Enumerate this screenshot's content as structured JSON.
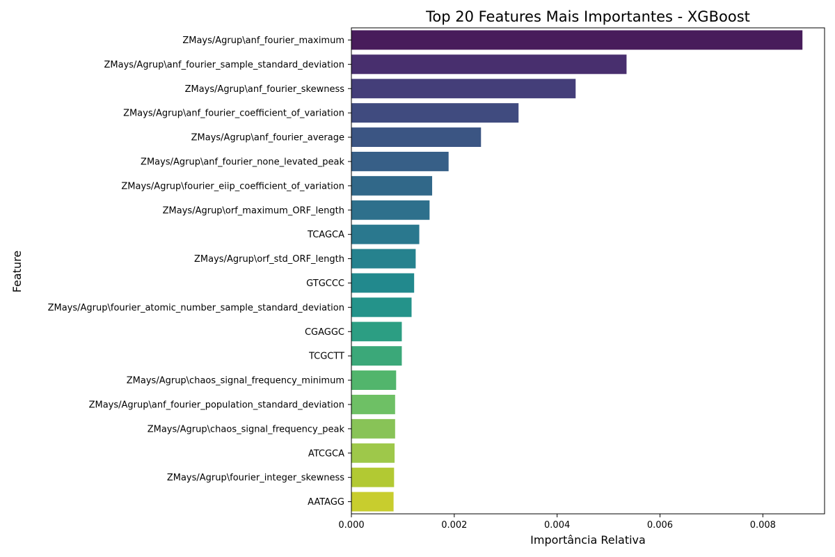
{
  "chart_data": {
    "type": "bar",
    "orientation": "horizontal",
    "title": "Top 20 Features Mais Importantes - XGBoost",
    "xlabel": "Importância Relativa",
    "ylabel": "Feature",
    "xlim": [
      0,
      0.0092
    ],
    "xticks": [
      0.0,
      0.002,
      0.004,
      0.006,
      0.008
    ],
    "xtick_labels": [
      "0.000",
      "0.002",
      "0.004",
      "0.006",
      "0.008"
    ],
    "grid": false,
    "legend": "none",
    "palette": "viridis",
    "categories": [
      "ZMays/Agrup\\anf_fourier_maximum",
      "ZMays/Agrup\\anf_fourier_sample_standard_deviation",
      "ZMays/Agrup\\anf_fourier_skewness",
      "ZMays/Agrup\\anf_fourier_coefficient_of_variation",
      "ZMays/Agrup\\anf_fourier_average",
      "ZMays/Agrup\\anf_fourier_none_levated_peak",
      "ZMays/Agrup\\fourier_eiip_coefficient_of_variation",
      "ZMays/Agrup\\orf_maximum_ORF_length",
      "TCAGCA",
      "ZMays/Agrup\\orf_std_ORF_length",
      "GTGCCC",
      "ZMays/Agrup\\fourier_atomic_number_sample_standard_deviation",
      "CGAGGC",
      "TCGCTT",
      "ZMays/Agrup\\chaos_signal_frequency_minimum",
      "ZMays/Agrup\\anf_fourier_population_standard_deviation",
      "ZMays/Agrup\\chaos_signal_frequency_peak",
      "ATCGCA",
      "ZMays/Agrup\\fourier_integer_skewness",
      "AATAGG"
    ],
    "values": [
      0.00877,
      0.00535,
      0.00436,
      0.00325,
      0.00252,
      0.00189,
      0.00157,
      0.00152,
      0.00132,
      0.00125,
      0.00122,
      0.00117,
      0.00098,
      0.00098,
      0.00087,
      0.00085,
      0.00085,
      0.00084,
      0.00083,
      0.00082
    ],
    "colors": [
      "#481c5b",
      "#482f6e",
      "#443e79",
      "#404b7f",
      "#3b5583",
      "#375f87",
      "#316889",
      "#2e708c",
      "#2a788e",
      "#26828e",
      "#22898d",
      "#24938a",
      "#2c9e83",
      "#3ba879",
      "#52b56c",
      "#6ec065",
      "#88c357",
      "#9ec84a",
      "#b2c933",
      "#c8cd2e"
    ]
  }
}
